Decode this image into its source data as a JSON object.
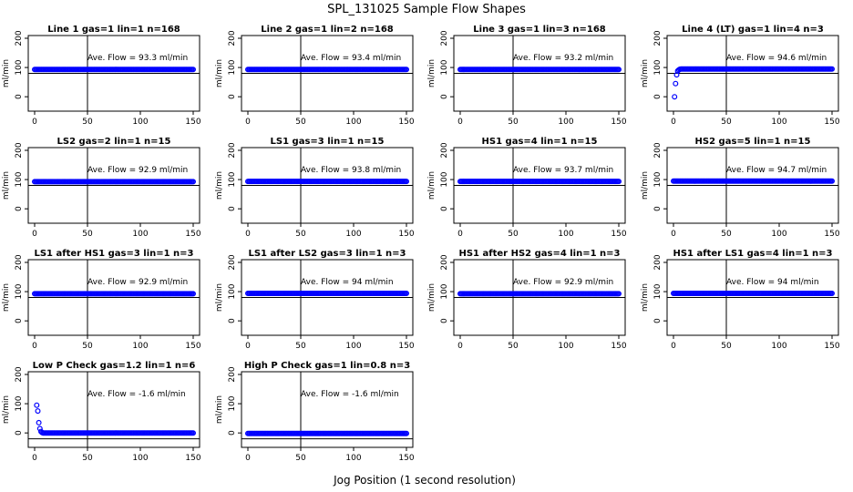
{
  "figure": {
    "title": "SPL_131025  Sample Flow Shapes",
    "xlabel": "Jog Position (1 second resolution)",
    "colors": {
      "points": "#0000ff",
      "axes": "#000000",
      "background": "#ffffff"
    }
  },
  "chart_data": [
    {
      "type": "scatter",
      "title": "Line 1 gas=1 lin=1 n=168",
      "ylabel": "ml/min",
      "xlim": [
        0,
        150
      ],
      "ylim": [
        -40,
        200
      ],
      "xticks": [
        0,
        50,
        100,
        150
      ],
      "yticks": [
        0,
        100,
        200
      ],
      "hline": 80,
      "vline": 50,
      "annotation": "Ave. Flow = 93.3  ml/min",
      "series": [
        {
          "shape": "flat",
          "x": [
            0,
            150
          ],
          "y": [
            93.3,
            93.3
          ]
        }
      ]
    },
    {
      "type": "scatter",
      "title": "Line 2 gas=1 lin=2 n=168",
      "ylabel": "ml/min",
      "xlim": [
        0,
        150
      ],
      "ylim": [
        -40,
        200
      ],
      "xticks": [
        0,
        50,
        100,
        150
      ],
      "yticks": [
        0,
        100,
        200
      ],
      "hline": 80,
      "vline": 50,
      "annotation": "Ave. Flow = 93.4  ml/min",
      "series": [
        {
          "shape": "flat",
          "x": [
            0,
            150
          ],
          "y": [
            93.4,
            93.4
          ]
        }
      ]
    },
    {
      "type": "scatter",
      "title": "Line 3 gas=1 lin=3 n=168",
      "ylabel": "ml/min",
      "xlim": [
        0,
        150
      ],
      "ylim": [
        -40,
        200
      ],
      "xticks": [
        0,
        50,
        100,
        150
      ],
      "yticks": [
        0,
        100,
        200
      ],
      "hline": 80,
      "vline": 50,
      "annotation": "Ave. Flow = 93.2  ml/min",
      "series": [
        {
          "shape": "flat",
          "x": [
            0,
            150
          ],
          "y": [
            93.2,
            93.2
          ]
        }
      ]
    },
    {
      "type": "scatter",
      "title": "Line 4 (LT) gas=1 lin=4 n=3",
      "ylabel": "ml/min",
      "xlim": [
        0,
        150
      ],
      "ylim": [
        -40,
        200
      ],
      "xticks": [
        0,
        50,
        100,
        150
      ],
      "yticks": [
        0,
        100,
        200
      ],
      "hline": 80,
      "vline": 50,
      "annotation": "Ave. Flow = 94.6  ml/min",
      "series": [
        {
          "shape": "rise",
          "x": [
            1,
            2,
            3,
            4,
            5,
            6,
            7,
            150
          ],
          "y": [
            0,
            45,
            75,
            88,
            92,
            94,
            95,
            95
          ]
        }
      ]
    },
    {
      "type": "scatter",
      "title": "LS2 gas=2 lin=1 n=15",
      "ylabel": "ml/min",
      "xlim": [
        0,
        150
      ],
      "ylim": [
        -40,
        200
      ],
      "xticks": [
        0,
        50,
        100,
        150
      ],
      "yticks": [
        0,
        100,
        200
      ],
      "hline": 80,
      "vline": 50,
      "annotation": "Ave. Flow = 92.9  ml/min",
      "series": [
        {
          "shape": "flat",
          "x": [
            0,
            150
          ],
          "y": [
            92.9,
            92.9
          ]
        }
      ]
    },
    {
      "type": "scatter",
      "title": "LS1 gas=3 lin=1 n=15",
      "ylabel": "ml/min",
      "xlim": [
        0,
        150
      ],
      "ylim": [
        -40,
        200
      ],
      "xticks": [
        0,
        50,
        100,
        150
      ],
      "yticks": [
        0,
        100,
        200
      ],
      "hline": 80,
      "vline": 50,
      "annotation": "Ave. Flow = 93.8  ml/min",
      "series": [
        {
          "shape": "flat",
          "x": [
            0,
            150
          ],
          "y": [
            93.8,
            93.8
          ]
        }
      ]
    },
    {
      "type": "scatter",
      "title": "HS1 gas=4 lin=1 n=15",
      "ylabel": "ml/min",
      "xlim": [
        0,
        150
      ],
      "ylim": [
        -40,
        200
      ],
      "xticks": [
        0,
        50,
        100,
        150
      ],
      "yticks": [
        0,
        100,
        200
      ],
      "hline": 80,
      "vline": 50,
      "annotation": "Ave. Flow = 93.7  ml/min",
      "series": [
        {
          "shape": "flat",
          "x": [
            0,
            150
          ],
          "y": [
            93.7,
            93.7
          ]
        }
      ]
    },
    {
      "type": "scatter",
      "title": "HS2 gas=5 lin=1 n=15",
      "ylabel": "ml/min",
      "xlim": [
        0,
        150
      ],
      "ylim": [
        -40,
        200
      ],
      "xticks": [
        0,
        50,
        100,
        150
      ],
      "yticks": [
        0,
        100,
        200
      ],
      "hline": 80,
      "vline": 50,
      "annotation": "Ave. Flow = 94.7  ml/min",
      "series": [
        {
          "shape": "flat",
          "x": [
            0,
            150
          ],
          "y": [
            94.7,
            94.7
          ]
        }
      ]
    },
    {
      "type": "scatter",
      "title": "LS1 after HS1 gas=3 lin=1 n=3",
      "ylabel": "ml/min",
      "xlim": [
        0,
        150
      ],
      "ylim": [
        -40,
        200
      ],
      "xticks": [
        0,
        50,
        100,
        150
      ],
      "yticks": [
        0,
        100,
        200
      ],
      "hline": 80,
      "vline": 50,
      "annotation": "Ave. Flow = 92.9  ml/min",
      "series": [
        {
          "shape": "flat",
          "x": [
            0,
            150
          ],
          "y": [
            92.9,
            92.9
          ]
        }
      ]
    },
    {
      "type": "scatter",
      "title": "LS1 after LS2 gas=3 lin=1 n=3",
      "ylabel": "ml/min",
      "xlim": [
        0,
        150
      ],
      "ylim": [
        -40,
        200
      ],
      "xticks": [
        0,
        50,
        100,
        150
      ],
      "yticks": [
        0,
        100,
        200
      ],
      "hline": 80,
      "vline": 50,
      "annotation": "Ave. Flow = 94  ml/min",
      "series": [
        {
          "shape": "flat",
          "x": [
            0,
            150
          ],
          "y": [
            94,
            94
          ]
        }
      ]
    },
    {
      "type": "scatter",
      "title": "HS1 after HS2 gas=4 lin=1 n=3",
      "ylabel": "ml/min",
      "xlim": [
        0,
        150
      ],
      "ylim": [
        -40,
        200
      ],
      "xticks": [
        0,
        50,
        100,
        150
      ],
      "yticks": [
        0,
        100,
        200
      ],
      "hline": 80,
      "vline": 50,
      "annotation": "Ave. Flow = 92.9  ml/min",
      "series": [
        {
          "shape": "flat",
          "x": [
            0,
            150
          ],
          "y": [
            92.9,
            92.9
          ]
        }
      ]
    },
    {
      "type": "scatter",
      "title": "HS1 after LS1 gas=4 lin=1 n=3",
      "ylabel": "ml/min",
      "xlim": [
        0,
        150
      ],
      "ylim": [
        -40,
        200
      ],
      "xticks": [
        0,
        50,
        100,
        150
      ],
      "yticks": [
        0,
        100,
        200
      ],
      "hline": 80,
      "vline": 50,
      "annotation": "Ave. Flow = 94  ml/min",
      "series": [
        {
          "shape": "flat",
          "x": [
            0,
            150
          ],
          "y": [
            94,
            94
          ]
        }
      ]
    },
    {
      "type": "scatter",
      "title": "Low P Check gas=1.2 lin=1 n=6",
      "ylabel": "ml/min",
      "xlim": [
        0,
        150
      ],
      "ylim": [
        -40,
        200
      ],
      "xticks": [
        0,
        50,
        100,
        150
      ],
      "yticks": [
        0,
        100,
        200
      ],
      "hline": -20,
      "vline": 50,
      "annotation": "Ave. Flow = -1.6  ml/min",
      "series": [
        {
          "shape": "decay",
          "x": [
            2,
            3,
            4,
            5,
            6,
            7,
            8,
            150
          ],
          "y": [
            95,
            75,
            35,
            15,
            5,
            1,
            0,
            0
          ]
        }
      ]
    },
    {
      "type": "scatter",
      "title": "High P Check gas=1 lin=0.8 n=3",
      "ylabel": "ml/min",
      "xlim": [
        0,
        150
      ],
      "ylim": [
        -40,
        200
      ],
      "xticks": [
        0,
        50,
        100,
        150
      ],
      "yticks": [
        0,
        100,
        200
      ],
      "hline": -20,
      "vline": 50,
      "annotation": "Ave. Flow = -1.6  ml/min",
      "series": [
        {
          "shape": "flat",
          "x": [
            0,
            150
          ],
          "y": [
            -1.6,
            -1.6
          ]
        }
      ]
    }
  ]
}
